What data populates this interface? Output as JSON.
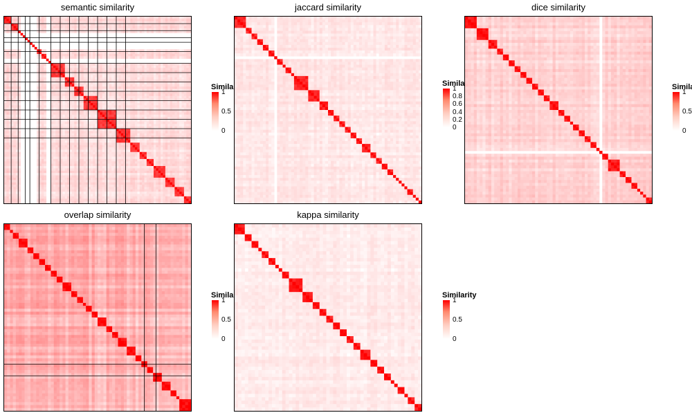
{
  "colors": {
    "high": "#ff0000",
    "low": "#ffffff",
    "border": "#000000"
  },
  "chart_data": [
    {
      "type": "heatmap",
      "title": "semantic similarity",
      "diagonal_blocks": [
        3,
        3,
        5,
        5,
        4,
        6,
        4,
        4,
        6,
        8,
        6,
        4,
        3,
        3,
        5,
        4,
        4,
        3
      ],
      "blank_rows": [
        7,
        8,
        9,
        10,
        11,
        12,
        13,
        18,
        19
      ],
      "outline_lines": [
        3,
        6,
        9,
        11,
        15,
        20,
        24,
        28,
        32,
        36,
        40,
        44,
        48,
        52
      ],
      "within_block": 0.78,
      "off_block": 0.14,
      "legend": {
        "title": "Similarity",
        "ticks": [
          "1",
          "0.5",
          "0"
        ]
      }
    },
    {
      "type": "heatmap",
      "title": "jaccard similarity",
      "diagonal_blocks": [
        4,
        2,
        2,
        2,
        2,
        2,
        1,
        2,
        1,
        2,
        1,
        5,
        4,
        3,
        2,
        2,
        2,
        2,
        2,
        2,
        3,
        2,
        2,
        2,
        2,
        1,
        1,
        1,
        1,
        1,
        2,
        1,
        1,
        1
      ],
      "blank_rows": [
        14
      ],
      "outline_lines": [],
      "within_block": 0.85,
      "off_block": 0.09,
      "legend": {
        "title": "Similarity",
        "ticks": [
          "1",
          "0.8",
          "0.6",
          "0.4",
          "0.2",
          "0"
        ]
      }
    },
    {
      "type": "heatmap",
      "title": "dice similarity",
      "diagonal_blocks": [
        4,
        4,
        3,
        2,
        2,
        2,
        2,
        2,
        2,
        2,
        2,
        2,
        3,
        2,
        2,
        1,
        2,
        2,
        2,
        2,
        2,
        2,
        4,
        2,
        2,
        2,
        1,
        1,
        1,
        2
      ],
      "blank_rows": [
        46
      ],
      "outline_lines": [],
      "within_block": 0.9,
      "off_block": 0.17,
      "legend": {
        "title": "Similarity",
        "ticks": [
          "1",
          "0.5",
          "0"
        ]
      }
    },
    {
      "type": "heatmap",
      "title": "overlap similarity",
      "diagonal_blocks": [
        2,
        1,
        2,
        3,
        2,
        2,
        2,
        2,
        2,
        2,
        3,
        2,
        2,
        1,
        2,
        2,
        3,
        2,
        2,
        3,
        3,
        2,
        2,
        2,
        3,
        3,
        2,
        1,
        4
      ],
      "blank_rows": [],
      "outline_lines": [
        48,
        52
      ],
      "within_block": 0.95,
      "off_block": 0.3,
      "legend": {
        "title": "Similarity",
        "ticks": [
          "1",
          "0.5",
          "0"
        ]
      }
    },
    {
      "type": "heatmap",
      "title": "kappa similarity",
      "diagonal_blocks": [
        3,
        2,
        2,
        1,
        2,
        2,
        1,
        1,
        2,
        4,
        3,
        2,
        2,
        2,
        2,
        2,
        2,
        2,
        3,
        2,
        2,
        2,
        1,
        1,
        2,
        1,
        2,
        2
      ],
      "blank_rows": [],
      "outline_lines": [],
      "within_block": 0.9,
      "off_block": 0.08,
      "legend": {
        "title": "Similarity",
        "ticks": [
          "1",
          "0.5",
          "0"
        ]
      }
    }
  ]
}
